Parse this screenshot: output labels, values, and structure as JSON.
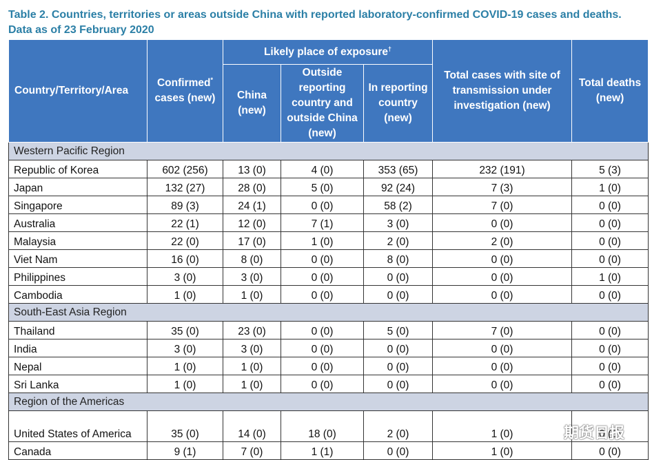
{
  "title": "Table 2. Countries, territories or areas outside China with reported laboratory-confirmed COVID-19 cases and deaths. Data as of 23 February 2020",
  "headers": {
    "country": "Country/Territory/Area",
    "confirmed": "Confirmed",
    "confirmed_sup": "*",
    "confirmed_tail": "cases (new)",
    "exposure_group": "Likely place of exposure",
    "exposure_sup": "†",
    "china": "China (new)",
    "outside": "Outside reporting country and outside China (new)",
    "in_country": "In reporting country (new)",
    "investigation": "Total cases with site of transmission under investigation (new)",
    "deaths": "Total deaths (new)"
  },
  "regions": [
    {
      "name": "Western Pacific Region",
      "rows": [
        {
          "country": "Republic of Korea",
          "confirmed": "602 (256)",
          "china": "13 (0)",
          "outside": "4 (0)",
          "in_country": "353 (65)",
          "investigation": "232 (191)",
          "deaths": "5 (3)"
        },
        {
          "country": "Japan",
          "confirmed": "132 (27)",
          "china": "28 (0)",
          "outside": "5 (0)",
          "in_country": "92 (24)",
          "investigation": "7 (3)",
          "deaths": "1 (0)"
        },
        {
          "country": "Singapore",
          "confirmed": "89 (3)",
          "china": "24 (1)",
          "outside": "0 (0)",
          "in_country": "58 (2)",
          "investigation": "7 (0)",
          "deaths": "0 (0)"
        },
        {
          "country": "Australia",
          "confirmed": "22 (1)",
          "china": "12 (0)",
          "outside": "7 (1)",
          "in_country": "3 (0)",
          "investigation": "0 (0)",
          "deaths": "0 (0)"
        },
        {
          "country": "Malaysia",
          "confirmed": "22 (0)",
          "china": "17 (0)",
          "outside": "1 (0)",
          "in_country": "2 (0)",
          "investigation": "2 (0)",
          "deaths": "0 (0)"
        },
        {
          "country": "Viet Nam",
          "confirmed": "16 (0)",
          "china": "8 (0)",
          "outside": "0 (0)",
          "in_country": "8 (0)",
          "investigation": "0 (0)",
          "deaths": "0 (0)"
        },
        {
          "country": "Philippines",
          "confirmed": "3 (0)",
          "china": "3 (0)",
          "outside": "0 (0)",
          "in_country": "0 (0)",
          "investigation": "0 (0)",
          "deaths": "1 (0)"
        },
        {
          "country": "Cambodia",
          "confirmed": "1 (0)",
          "china": "1 (0)",
          "outside": "0 (0)",
          "in_country": "0 (0)",
          "investigation": "0 (0)",
          "deaths": "0 (0)"
        }
      ]
    },
    {
      "name": "South-East Asia Region",
      "rows": [
        {
          "country": "Thailand",
          "confirmed": "35 (0)",
          "china": "23 (0)",
          "outside": "0 (0)",
          "in_country": "5 (0)",
          "investigation": "7 (0)",
          "deaths": "0 (0)"
        },
        {
          "country": "India",
          "confirmed": "3 (0)",
          "china": "3 (0)",
          "outside": "0 (0)",
          "in_country": "0 (0)",
          "investigation": "0 (0)",
          "deaths": "0 (0)"
        },
        {
          "country": "Nepal",
          "confirmed": "1 (0)",
          "china": "1 (0)",
          "outside": "0 (0)",
          "in_country": "0 (0)",
          "investigation": "0 (0)",
          "deaths": "0 (0)"
        },
        {
          "country": "Sri Lanka",
          "confirmed": "1 (0)",
          "china": "1 (0)",
          "outside": "0 (0)",
          "in_country": "0 (0)",
          "investigation": "0 (0)",
          "deaths": "0 (0)"
        }
      ]
    },
    {
      "name": "Region of the Americas",
      "rows": [
        {
          "country": "United States of America",
          "confirmed": "35 (0)",
          "china": "14 (0)",
          "outside": "18 (0)",
          "in_country": "2 (0)",
          "investigation": "1 (0)",
          "deaths": "0 (0)"
        },
        {
          "country": "Canada",
          "confirmed": "9 (1)",
          "china": "7 (0)",
          "outside": "1 (1)",
          "in_country": "0 (0)",
          "investigation": "1 (0)",
          "deaths": "0 (0)"
        }
      ]
    }
  ],
  "watermark": {
    "text": "期货日报",
    "icon": "wechat-icon"
  }
}
